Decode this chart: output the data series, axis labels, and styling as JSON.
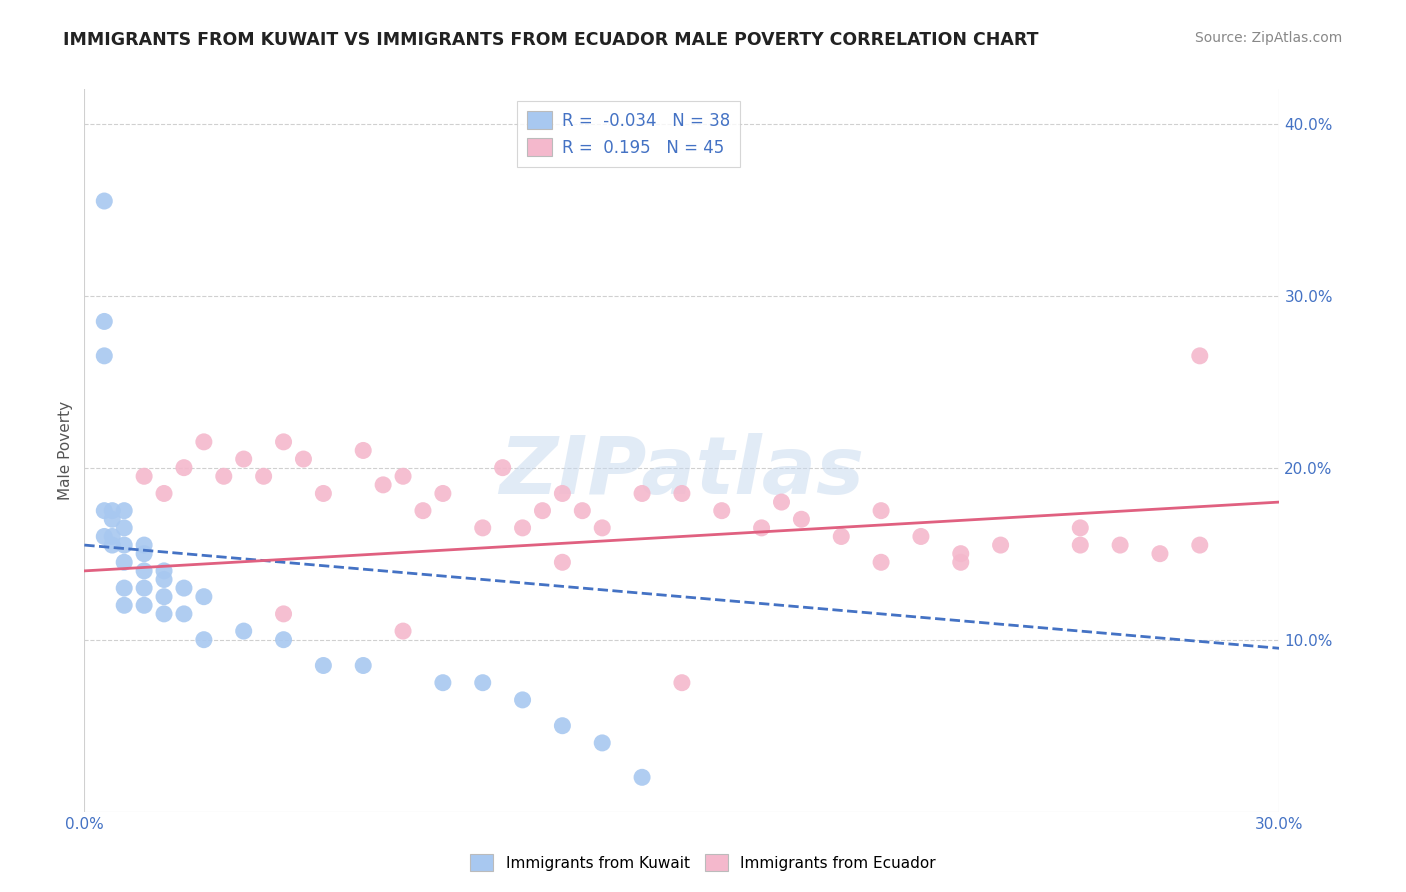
{
  "title": "IMMIGRANTS FROM KUWAIT VS IMMIGRANTS FROM ECUADOR MALE POVERTY CORRELATION CHART",
  "source": "Source: ZipAtlas.com",
  "ylabel": "Male Poverty",
  "xlim": [
    0.0,
    0.3
  ],
  "ylim": [
    0.0,
    0.42
  ],
  "kuwait_color": "#a8c8f0",
  "ecuador_color": "#f4b8cc",
  "kuwait_line_color": "#4472c4",
  "ecuador_line_color": "#e06080",
  "kuwait_R": -0.034,
  "kuwait_N": 38,
  "ecuador_R": 0.195,
  "ecuador_N": 45,
  "watermark": "ZIPatlas",
  "background_color": "#ffffff",
  "grid_color": "#d0d0d0",
  "title_color": "#222222",
  "tick_label_color": "#4472c4",
  "ylabel_color": "#555555",
  "kuwait_scatter_x": [
    0.005,
    0.005,
    0.005,
    0.005,
    0.005,
    0.007,
    0.007,
    0.007,
    0.007,
    0.01,
    0.01,
    0.01,
    0.01,
    0.01,
    0.01,
    0.015,
    0.015,
    0.015,
    0.015,
    0.015,
    0.02,
    0.02,
    0.02,
    0.02,
    0.025,
    0.025,
    0.03,
    0.03,
    0.04,
    0.05,
    0.06,
    0.07,
    0.09,
    0.1,
    0.11,
    0.12,
    0.13,
    0.14
  ],
  "kuwait_scatter_y": [
    0.355,
    0.285,
    0.265,
    0.175,
    0.16,
    0.175,
    0.17,
    0.16,
    0.155,
    0.175,
    0.165,
    0.155,
    0.145,
    0.13,
    0.12,
    0.155,
    0.15,
    0.14,
    0.13,
    0.12,
    0.14,
    0.135,
    0.125,
    0.115,
    0.13,
    0.115,
    0.125,
    0.1,
    0.105,
    0.1,
    0.085,
    0.085,
    0.075,
    0.075,
    0.065,
    0.05,
    0.04,
    0.02
  ],
  "ecuador_scatter_x": [
    0.015,
    0.02,
    0.025,
    0.03,
    0.035,
    0.04,
    0.045,
    0.05,
    0.055,
    0.06,
    0.07,
    0.075,
    0.08,
    0.085,
    0.09,
    0.1,
    0.105,
    0.11,
    0.115,
    0.12,
    0.125,
    0.13,
    0.14,
    0.15,
    0.16,
    0.17,
    0.175,
    0.18,
    0.19,
    0.2,
    0.21,
    0.22,
    0.23,
    0.25,
    0.26,
    0.27,
    0.28,
    0.05,
    0.08,
    0.12,
    0.15,
    0.2,
    0.22,
    0.25,
    0.28
  ],
  "ecuador_scatter_y": [
    0.195,
    0.185,
    0.2,
    0.215,
    0.195,
    0.205,
    0.195,
    0.215,
    0.205,
    0.185,
    0.21,
    0.19,
    0.195,
    0.175,
    0.185,
    0.165,
    0.2,
    0.165,
    0.175,
    0.185,
    0.175,
    0.165,
    0.185,
    0.185,
    0.175,
    0.165,
    0.18,
    0.17,
    0.16,
    0.175,
    0.16,
    0.15,
    0.155,
    0.165,
    0.155,
    0.15,
    0.265,
    0.115,
    0.105,
    0.145,
    0.075,
    0.145,
    0.145,
    0.155,
    0.155
  ]
}
